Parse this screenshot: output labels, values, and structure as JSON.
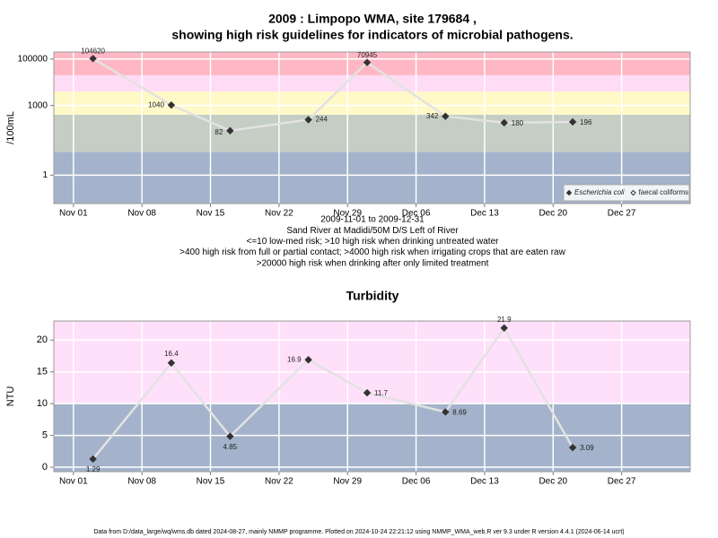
{
  "chart_data": [
    {
      "type": "line",
      "title": [
        "2009 : Limpopo WMA, site 179684 ,",
        "showing high risk guidelines for indicators of microbial pathogens."
      ],
      "ylabel": "/100mL",
      "xlabel": [
        "2009-11-01 to 2009-12-31",
        "Sand River at Madidi/50M D/S Left of River",
        "<=10 low-med risk; >10 high risk when drinking untreated water",
        ">400 high risk from full or partial contact; >4000 high risk when irrigating crops that are eaten raw",
        ">20000 high risk when drinking after only limited treatment"
      ],
      "log_y": true,
      "x": [
        "2009-11-03",
        "2009-11-11",
        "2009-11-17",
        "2009-11-25",
        "2009-12-01",
        "2009-12-09",
        "2009-12-15",
        "2009-12-22"
      ],
      "series": [
        {
          "name": "Escherichia coli",
          "color": "#333333",
          "line_color": "#e2e2e2",
          "filled": true,
          "values": [
            104620,
            1040,
            82,
            244,
            70945,
            342,
            180,
            196
          ]
        },
        {
          "name": "faecal coliforms",
          "color": "#333333",
          "line_color": "#e2e2e2",
          "filled": false,
          "values": [
            null,
            null,
            null,
            null,
            null,
            null,
            null,
            null
          ]
        }
      ],
      "xlim": [
        "2009-10-30",
        "2010-01-03"
      ],
      "xticks": [
        {
          "value": "2009-11-01",
          "label": "Nov 01"
        },
        {
          "value": "2009-11-08",
          "label": "Nov 08"
        },
        {
          "value": "2009-11-15",
          "label": "Nov 15"
        },
        {
          "value": "2009-11-22",
          "label": "Nov 22"
        },
        {
          "value": "2009-11-29",
          "label": "Nov 29"
        },
        {
          "value": "2009-12-06",
          "label": "Dec 06"
        },
        {
          "value": "2009-12-13",
          "label": "Dec 13"
        },
        {
          "value": "2009-12-20",
          "label": "Dec 20"
        },
        {
          "value": "2009-12-27",
          "label": "Dec 27"
        }
      ],
      "ylim": [
        0.06,
        200000
      ],
      "yticks": [
        1,
        1000,
        100000
      ],
      "bands": [
        {
          "to": 10,
          "color": "#a4b3cb"
        },
        {
          "from": 10,
          "to": 400,
          "color": "#c4cec4"
        },
        {
          "from": 400,
          "to": 4000,
          "color": "#fff9c8"
        },
        {
          "from": 4000,
          "to": 20000,
          "color": "#ffdcf5"
        },
        {
          "from": 20000,
          "color": "#ffb7c4"
        }
      ],
      "grid": true,
      "legend": "bottomright"
    },
    {
      "type": "line",
      "title": [
        "Turbidity"
      ],
      "ylabel": "NTU",
      "log_y": false,
      "x": [
        "2009-11-03",
        "2009-11-11",
        "2009-11-17",
        "2009-11-25",
        "2009-12-01",
        "2009-12-09",
        "2009-12-15",
        "2009-12-22"
      ],
      "values": [
        1.29,
        16.4,
        4.85,
        16.9,
        11.7,
        8.69,
        21.9,
        3.09
      ],
      "color": "#333333",
      "line_color": "#e2e2e2",
      "xlim": [
        "2009-10-30",
        "2010-01-03"
      ],
      "xticks": [
        {
          "value": "2009-11-01",
          "label": "Nov 01"
        },
        {
          "value": "2009-11-08",
          "label": "Nov 08"
        },
        {
          "value": "2009-11-15",
          "label": "Nov 15"
        },
        {
          "value": "2009-11-22",
          "label": "Nov 22"
        },
        {
          "value": "2009-11-29",
          "label": "Nov 29"
        },
        {
          "value": "2009-12-06",
          "label": "Dec 06"
        },
        {
          "value": "2009-12-13",
          "label": "Dec 13"
        },
        {
          "value": "2009-12-20",
          "label": "Dec 20"
        },
        {
          "value": "2009-12-27",
          "label": "Dec 27"
        }
      ],
      "ylim": [
        -0.7,
        23
      ],
      "yticks": [
        0,
        5,
        10,
        15,
        20
      ],
      "bands": [
        {
          "to": 10,
          "color": "#a4b3cb"
        },
        {
          "from": 10,
          "color": "#ffe0fa"
        }
      ],
      "grid": true
    }
  ],
  "footer": "Data from D:/data_large/wq/wms.db dated 2024-08-27, mainly NMMP programme. Plotted on 2024-10-24 22:21:12 using NMMP_WMA_web.R ver 9.3 under R version 4.4.1 (2024-06-14 ucrt)"
}
